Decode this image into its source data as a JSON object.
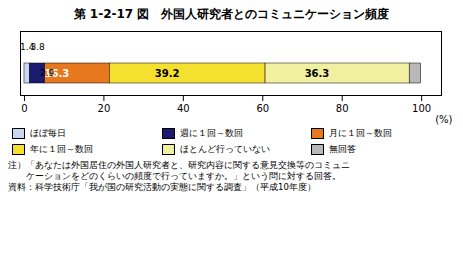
{
  "chart_data": {
    "type": "bar",
    "orientation": "horizontal",
    "stacked": true,
    "title": "第 1-2-17 図　外国人研究者とのコミュニケーション頻度",
    "categories": [
      null
    ],
    "series": [
      {
        "name": "ほぼ毎日",
        "color": "#c8d8f0",
        "values": [
          1.4
        ]
      },
      {
        "name": "週に１回～数回",
        "color": "#1a1a6e",
        "values": [
          3.8
        ]
      },
      {
        "name": "月に１回～数回",
        "color": "#e8781e",
        "values": [
          16.3
        ]
      },
      {
        "name": "年に１回～数回",
        "color": "#f5e030",
        "values": [
          39.2
        ]
      },
      {
        "name": "ほとんど行っていない",
        "color": "#f0f0a0",
        "values": [
          36.3
        ]
      },
      {
        "name": "無回答",
        "color": "#b8b8b8",
        "values": [
          2.9
        ]
      }
    ],
    "xlabel": "(%)",
    "xlim": [
      -1,
      105
    ],
    "xticks": [
      0,
      20,
      40,
      60,
      80,
      100
    ],
    "data_labels": true,
    "legend": "bottom",
    "tick_labels": "x",
    "annotations": [
      "注）「あなたは外国居住の外国人研究者と、研究内容に関する意見交換等のコミュニ",
      "　　ケーションをどのくらいの頻度で行っていますか。」という問に対する回答。",
      "資料：科学技術庁「我が国の研究活動の実態に関する調査」（平成10年度）"
    ]
  }
}
